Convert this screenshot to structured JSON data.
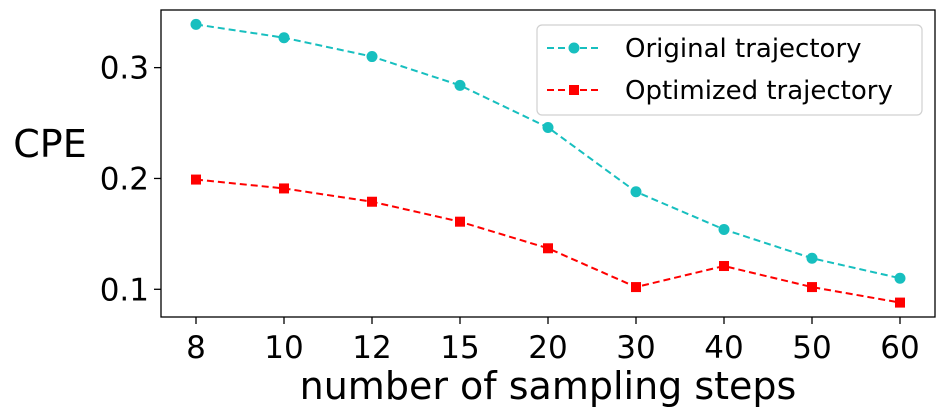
{
  "chart_data": {
    "type": "line",
    "title": "",
    "xlabel": "number of sampling steps",
    "ylabel": "CPE",
    "categories": [
      "8",
      "10",
      "12",
      "15",
      "20",
      "30",
      "40",
      "50",
      "60"
    ],
    "ylim": [
      0.075,
      0.352
    ],
    "yticks": [
      {
        "value": 0.1,
        "label": "0.1"
      },
      {
        "value": 0.2,
        "label": "0.2"
      },
      {
        "value": 0.3,
        "label": "0.3"
      }
    ],
    "grid": false,
    "legend_position": "top-right",
    "series": [
      {
        "name": "Original trajectory",
        "color": "#17bfbf",
        "marker": "circle",
        "linestyle": "dashed",
        "values": [
          0.339,
          0.327,
          0.31,
          0.284,
          0.246,
          0.188,
          0.154,
          0.128,
          0.11
        ]
      },
      {
        "name": "Optimized trajectory",
        "color": "#ff0000",
        "marker": "square",
        "linestyle": "dashed",
        "values": [
          0.199,
          0.191,
          0.179,
          0.161,
          0.137,
          0.102,
          0.121,
          0.102,
          0.088
        ]
      }
    ]
  }
}
